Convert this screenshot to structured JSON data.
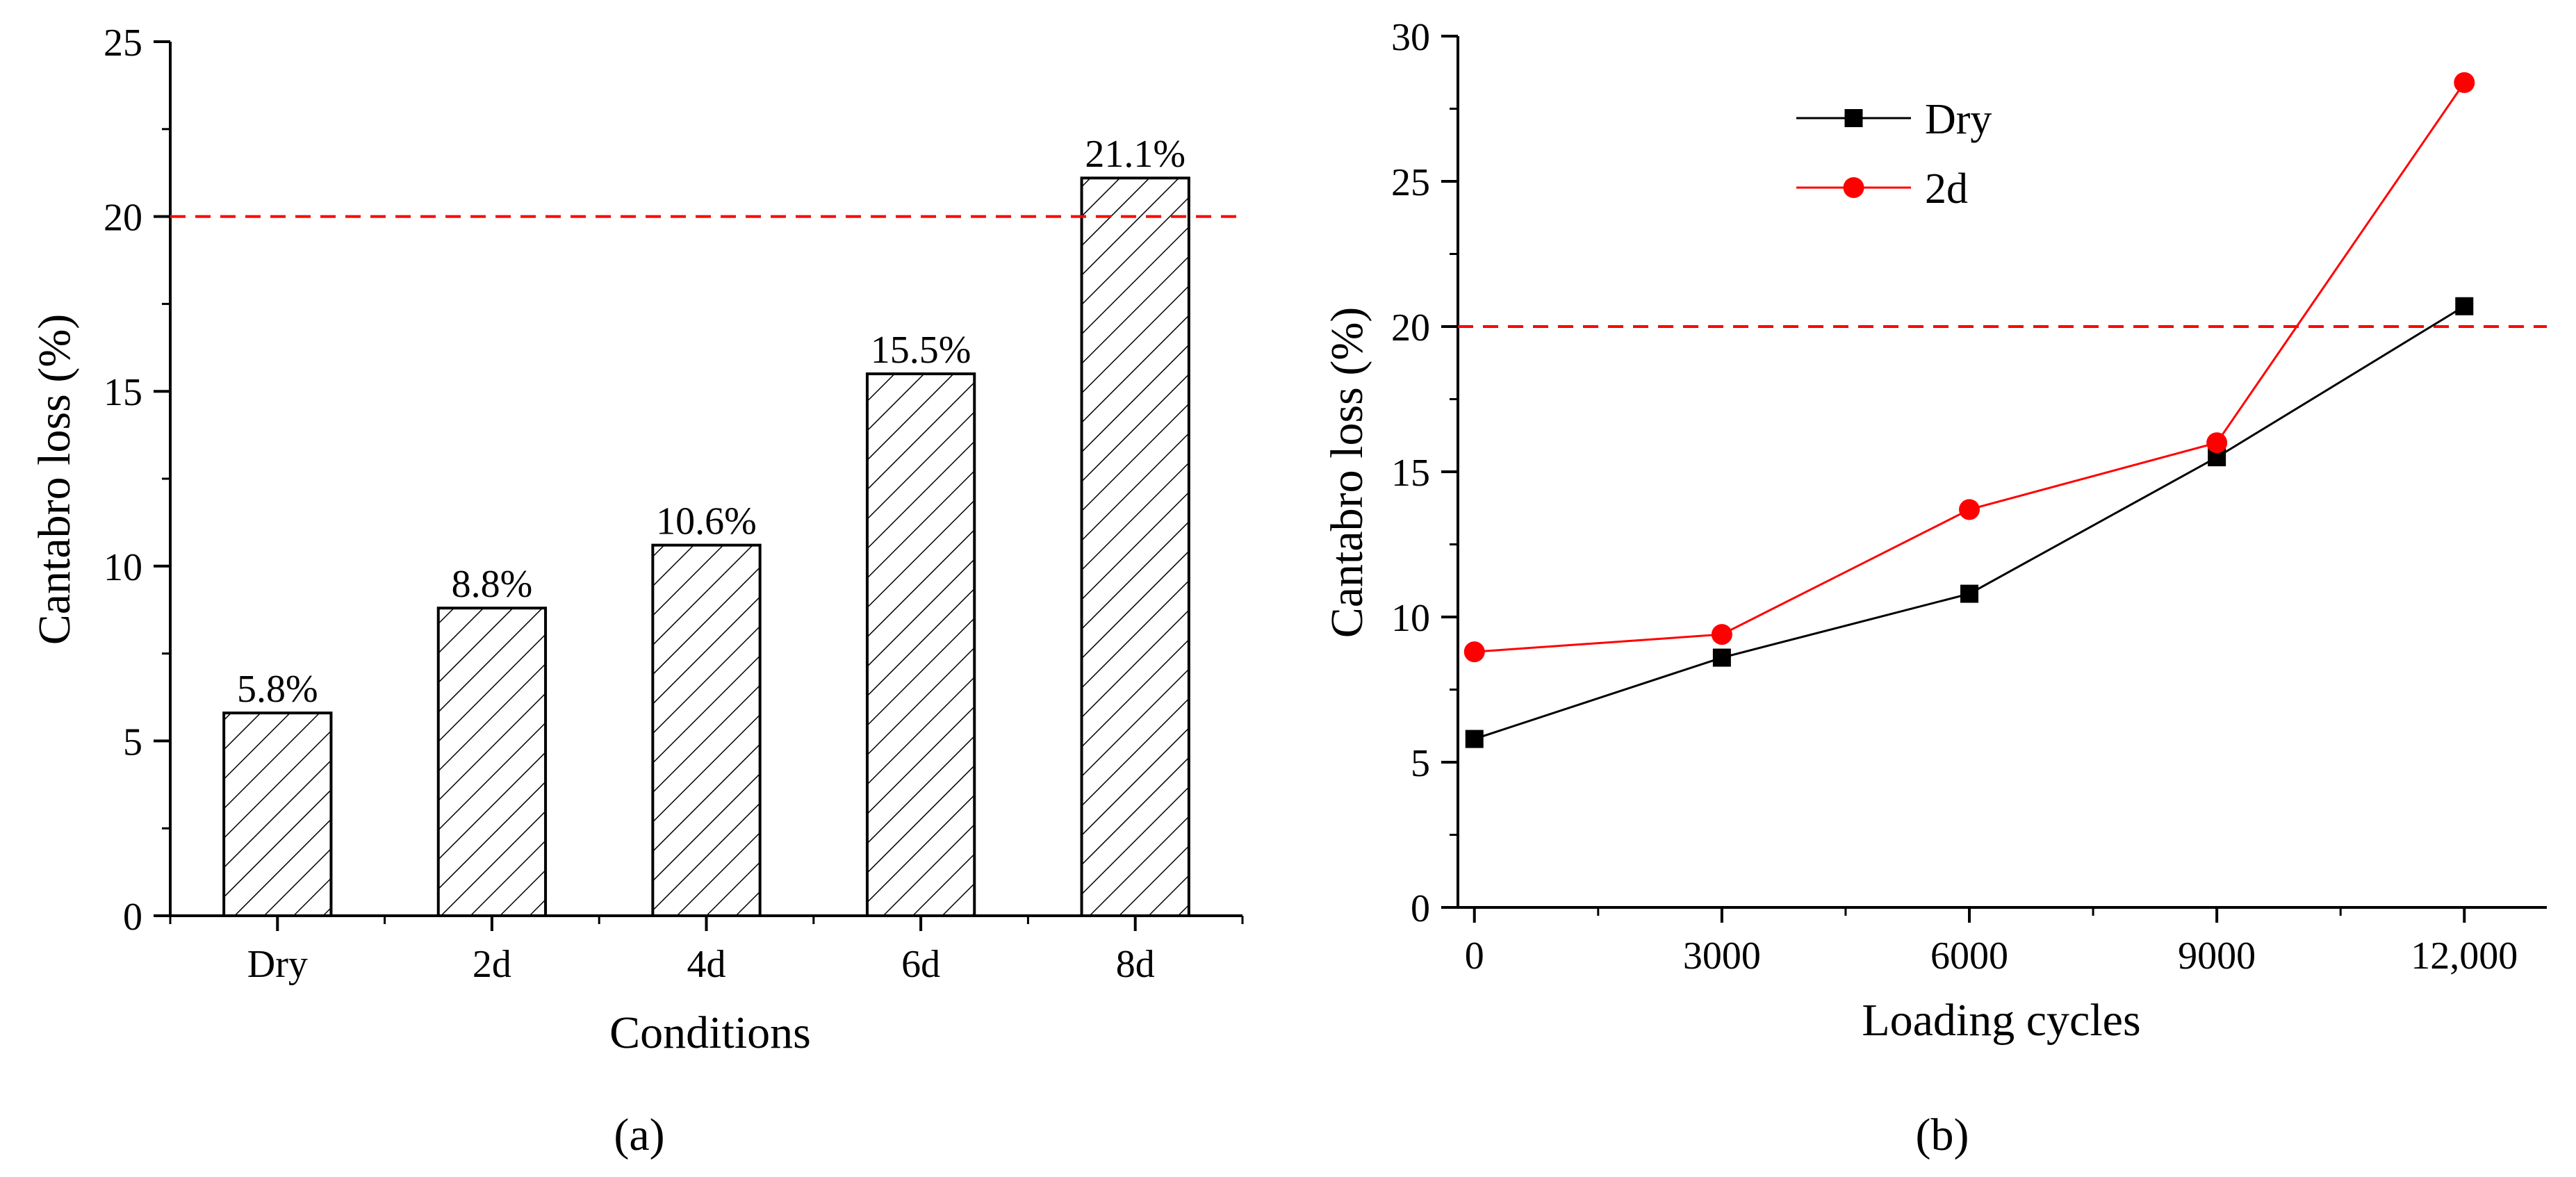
{
  "chart_data": [
    {
      "type": "bar",
      "panel_label": "(a)",
      "categories": [
        "Dry",
        "2d",
        "4d",
        "6d",
        "8d"
      ],
      "values": [
        5.8,
        8.8,
        10.6,
        15.5,
        21.1
      ],
      "value_labels": [
        "5.8%",
        "8.8%",
        "10.6%",
        "15.5%",
        "21.1%"
      ],
      "xlabel": "Conditions",
      "ylabel": "Cantabro loss (%)",
      "ylim": [
        0,
        25
      ],
      "yticks": [
        0,
        5,
        10,
        15,
        20,
        25
      ],
      "threshold": 20,
      "threshold_color": "#ff0000",
      "bar_fill": "hatched"
    },
    {
      "type": "line",
      "panel_label": "(b)",
      "x": [
        0,
        3000,
        6000,
        9000,
        12000
      ],
      "xtick_labels": [
        "0",
        "3000",
        "6000",
        "9000",
        "12,000"
      ],
      "series": [
        {
          "name": "Dry",
          "values": [
            5.8,
            8.6,
            10.8,
            15.5,
            20.7
          ],
          "color": "#000000",
          "marker": "square"
        },
        {
          "name": "2d",
          "values": [
            8.8,
            9.4,
            13.7,
            16.0,
            28.4
          ],
          "color": "#ff0000",
          "marker": "circle"
        }
      ],
      "xlabel": "Loading cycles",
      "ylabel": "Cantabro loss (%)",
      "xlim": [
        -200,
        13000
      ],
      "ylim": [
        0,
        30
      ],
      "yticks": [
        0,
        5,
        10,
        15,
        20,
        25,
        30
      ],
      "threshold": 20,
      "threshold_color": "#ff0000",
      "legend_position": "top-center"
    }
  ]
}
